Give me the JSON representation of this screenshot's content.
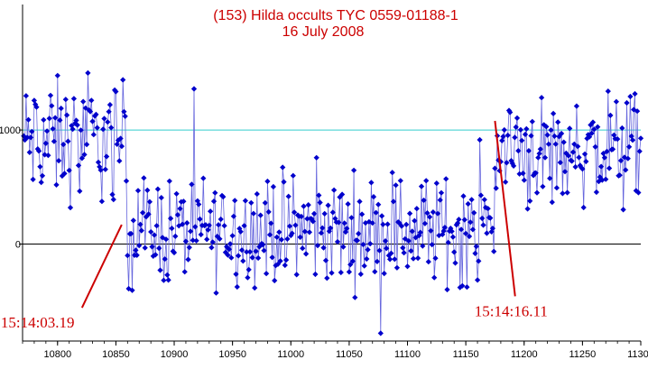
{
  "chart_data": {
    "type": "line",
    "title": "(153) Hilda occults TYC 0559-01188-1",
    "subtitle": "16 July 2008",
    "xlabel": "",
    "ylabel": "",
    "xlim": [
      10770,
      11300
    ],
    "ylim": [
      -850,
      2100
    ],
    "xticks": [
      10800,
      10850,
      10900,
      10950,
      11000,
      11050,
      11100,
      11150,
      11200,
      11250,
      11300
    ],
    "xtick_labels": [
      "10800",
      "10850",
      "10900",
      "10950",
      "11000",
      "11050",
      "11100",
      "11150",
      "11200",
      "11250",
      "11300"
    ],
    "yticks": [
      0,
      1000
    ],
    "ytick_labels": [
      "0",
      "1000"
    ],
    "reference_lines": [
      {
        "y": 0,
        "color": "#000000"
      },
      {
        "y": 1000,
        "color": "#33cccc"
      }
    ],
    "series_color": "#0000cc",
    "line_color": "#6666dd",
    "series": [
      {
        "x_start": 10771,
        "x_step": 1,
        "segments": [
          {
            "from": 10771,
            "to": 10859,
            "mean": 900,
            "spread": 430
          },
          {
            "from": 10860,
            "to": 11174,
            "mean": 120,
            "spread": 380
          },
          {
            "from": 11175,
            "to": 11300,
            "mean": 820,
            "spread": 400
          }
        ]
      }
    ],
    "annotations": [
      {
        "text": "15:14:03.19",
        "x": 10855,
        "y": 170,
        "label_x": 10790,
        "label_y": -700
      },
      {
        "text": "15:14:16.11",
        "x": 11175,
        "y": 1080,
        "label_x": 11200,
        "label_y": -600
      }
    ],
    "grid": false,
    "legend": "none"
  }
}
